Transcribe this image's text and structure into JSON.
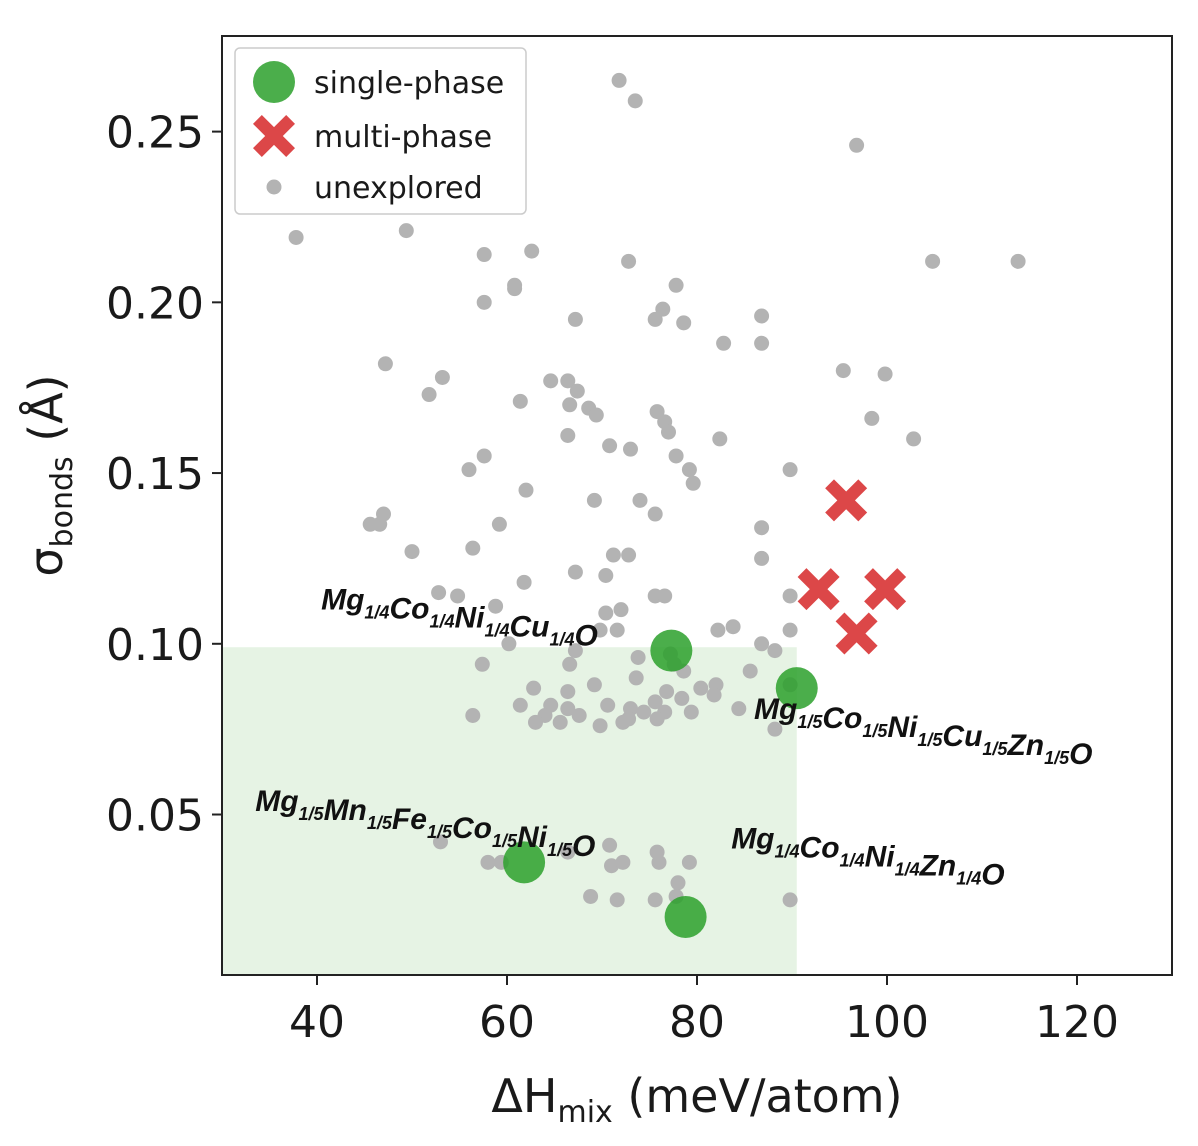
{
  "chart_data": {
    "type": "scatter",
    "xlabel": {
      "main": "ΔH",
      "sub": "mix",
      "rest": " (meV/atom)"
    },
    "ylabel": {
      "main": "σ",
      "sub": "bonds",
      "rest": " (Å)"
    },
    "xlim": [
      30,
      130
    ],
    "ylim": [
      0.003,
      0.278
    ],
    "xticks": [
      40,
      60,
      80,
      100,
      120
    ],
    "yticks": [
      0.05,
      0.1,
      0.15,
      0.2,
      0.25
    ],
    "xtick_labels": [
      "40",
      "60",
      "80",
      "100",
      "120"
    ],
    "ytick_labels": [
      "0.05",
      "0.10",
      "0.15",
      "0.20",
      "0.25"
    ],
    "grid": false,
    "legend_position": "top-left",
    "region": {
      "x": [
        30,
        90.5
      ],
      "y": [
        0.003,
        0.099
      ],
      "color": "#e6f3e4"
    },
    "colors": {
      "single": "#2ca02c",
      "multi": "#d62728",
      "unexplored": "#b3b3b3"
    },
    "series": [
      {
        "name": "single-phase",
        "marker": "circle",
        "points": [
          [
            77.3,
            0.098
          ],
          [
            90.5,
            0.087
          ],
          [
            61.8,
            0.036
          ],
          [
            78.8,
            0.02
          ]
        ]
      },
      {
        "name": "multi-phase",
        "marker": "x",
        "points": [
          [
            95.7,
            0.142
          ],
          [
            92.8,
            0.116
          ],
          [
            99.8,
            0.116
          ],
          [
            96.8,
            0.103
          ]
        ]
      },
      {
        "name": "unexplored",
        "marker": "dot",
        "points": [
          [
            71.8,
            0.265
          ],
          [
            73.5,
            0.259
          ],
          [
            96.8,
            0.246
          ],
          [
            37.8,
            0.219
          ],
          [
            49.4,
            0.221
          ],
          [
            104.8,
            0.212
          ],
          [
            113.8,
            0.212
          ],
          [
            57.6,
            0.214
          ],
          [
            62.6,
            0.215
          ],
          [
            72.8,
            0.212
          ],
          [
            60.8,
            0.205
          ],
          [
            60.8,
            0.204
          ],
          [
            77.8,
            0.205
          ],
          [
            57.6,
            0.2
          ],
          [
            76.4,
            0.198
          ],
          [
            75.6,
            0.195
          ],
          [
            78.6,
            0.194
          ],
          [
            67.2,
            0.195
          ],
          [
            86.8,
            0.196
          ],
          [
            82.8,
            0.188
          ],
          [
            86.8,
            0.188
          ],
          [
            47.2,
            0.182
          ],
          [
            95.4,
            0.18
          ],
          [
            99.8,
            0.179
          ],
          [
            53.2,
            0.178
          ],
          [
            51.8,
            0.173
          ],
          [
            64.6,
            0.177
          ],
          [
            66.4,
            0.177
          ],
          [
            67.4,
            0.174
          ],
          [
            61.4,
            0.171
          ],
          [
            66.6,
            0.17
          ],
          [
            68.6,
            0.169
          ],
          [
            69.4,
            0.167
          ],
          [
            75.8,
            0.168
          ],
          [
            76.6,
            0.165
          ],
          [
            98.4,
            0.166
          ],
          [
            77.0,
            0.162
          ],
          [
            66.4,
            0.161
          ],
          [
            82.4,
            0.16
          ],
          [
            102.8,
            0.16
          ],
          [
            70.8,
            0.158
          ],
          [
            73.0,
            0.157
          ],
          [
            57.6,
            0.155
          ],
          [
            56.0,
            0.151
          ],
          [
            77.8,
            0.155
          ],
          [
            79.2,
            0.151
          ],
          [
            89.8,
            0.151
          ],
          [
            79.6,
            0.147
          ],
          [
            62.0,
            0.145
          ],
          [
            69.2,
            0.142
          ],
          [
            74.0,
            0.142
          ],
          [
            75.6,
            0.138
          ],
          [
            47.0,
            0.138
          ],
          [
            45.6,
            0.135
          ],
          [
            46.6,
            0.135
          ],
          [
            59.2,
            0.135
          ],
          [
            86.8,
            0.134
          ],
          [
            50.0,
            0.127
          ],
          [
            56.4,
            0.128
          ],
          [
            71.2,
            0.126
          ],
          [
            72.8,
            0.126
          ],
          [
            86.8,
            0.125
          ],
          [
            61.8,
            0.118
          ],
          [
            67.2,
            0.121
          ],
          [
            70.4,
            0.12
          ],
          [
            52.8,
            0.115
          ],
          [
            54.8,
            0.114
          ],
          [
            75.6,
            0.114
          ],
          [
            76.6,
            0.114
          ],
          [
            89.8,
            0.114
          ],
          [
            58.8,
            0.111
          ],
          [
            70.4,
            0.109
          ],
          [
            72.0,
            0.11
          ],
          [
            69.8,
            0.104
          ],
          [
            71.6,
            0.104
          ],
          [
            82.2,
            0.104
          ],
          [
            83.8,
            0.105
          ],
          [
            89.8,
            0.104
          ],
          [
            60.2,
            0.1
          ],
          [
            86.8,
            0.1
          ],
          [
            88.2,
            0.098
          ],
          [
            67.2,
            0.098
          ],
          [
            73.8,
            0.096
          ],
          [
            77.2,
            0.097
          ],
          [
            57.4,
            0.094
          ],
          [
            66.6,
            0.094
          ],
          [
            77.6,
            0.094
          ],
          [
            78.6,
            0.092
          ],
          [
            73.6,
            0.09
          ],
          [
            85.6,
            0.092
          ],
          [
            89.8,
            0.088
          ],
          [
            80.4,
            0.087
          ],
          [
            82.0,
            0.088
          ],
          [
            69.2,
            0.088
          ],
          [
            62.8,
            0.087
          ],
          [
            66.4,
            0.086
          ],
          [
            76.8,
            0.086
          ],
          [
            78.4,
            0.084
          ],
          [
            75.6,
            0.083
          ],
          [
            81.8,
            0.085
          ],
          [
            70.6,
            0.082
          ],
          [
            61.4,
            0.082
          ],
          [
            64.6,
            0.082
          ],
          [
            66.4,
            0.081
          ],
          [
            73.0,
            0.081
          ],
          [
            56.4,
            0.079
          ],
          [
            64.0,
            0.079
          ],
          [
            72.8,
            0.078
          ],
          [
            74.4,
            0.08
          ],
          [
            76.6,
            0.08
          ],
          [
            79.4,
            0.08
          ],
          [
            84.4,
            0.081
          ],
          [
            65.6,
            0.077
          ],
          [
            67.6,
            0.079
          ],
          [
            69.8,
            0.076
          ],
          [
            72.2,
            0.077
          ],
          [
            75.8,
            0.078
          ],
          [
            63.0,
            0.077
          ],
          [
            88.2,
            0.075
          ],
          [
            53.0,
            0.042
          ],
          [
            70.8,
            0.041
          ],
          [
            66.4,
            0.039
          ],
          [
            75.8,
            0.039
          ],
          [
            58.0,
            0.036
          ],
          [
            59.4,
            0.036
          ],
          [
            71.0,
            0.035
          ],
          [
            72.2,
            0.036
          ],
          [
            76.0,
            0.036
          ],
          [
            79.2,
            0.036
          ],
          [
            78.0,
            0.03
          ],
          [
            68.8,
            0.026
          ],
          [
            71.6,
            0.025
          ],
          [
            75.6,
            0.025
          ],
          [
            77.8,
            0.026
          ],
          [
            89.8,
            0.025
          ]
        ]
      }
    ],
    "annotations": [
      {
        "parts": [
          [
            "Mg",
            "1/4"
          ],
          [
            "Co",
            "1/4"
          ],
          [
            "Ni",
            "1/4"
          ],
          [
            "Cu",
            "1/4"
          ],
          [
            "O",
            ""
          ]
        ],
        "x": 55.0,
        "y": 0.11,
        "anchor": "middle"
      },
      {
        "parts": [
          [
            "Mg",
            "1/5"
          ],
          [
            "Co",
            "1/5"
          ],
          [
            "Ni",
            "1/5"
          ],
          [
            "Cu",
            "1/5"
          ],
          [
            "Zn",
            "1/5"
          ],
          [
            "O",
            ""
          ]
        ],
        "x": 86.0,
        "y": 0.078,
        "anchor": "start"
      },
      {
        "parts": [
          [
            "Mg",
            "1/5"
          ],
          [
            "Mn",
            "1/5"
          ],
          [
            "Fe",
            "1/5"
          ],
          [
            "Co",
            "1/5"
          ],
          [
            "Ni",
            "1/5"
          ],
          [
            "O",
            ""
          ]
        ],
        "x": 51.4,
        "y": 0.051,
        "anchor": "middle"
      },
      {
        "parts": [
          [
            "Mg",
            "1/4"
          ],
          [
            "Co",
            "1/4"
          ],
          [
            "Ni",
            "1/4"
          ],
          [
            "Zn",
            "1/4"
          ],
          [
            "O",
            ""
          ]
        ],
        "x": 83.6,
        "y": 0.04,
        "anchor": "start"
      }
    ]
  }
}
